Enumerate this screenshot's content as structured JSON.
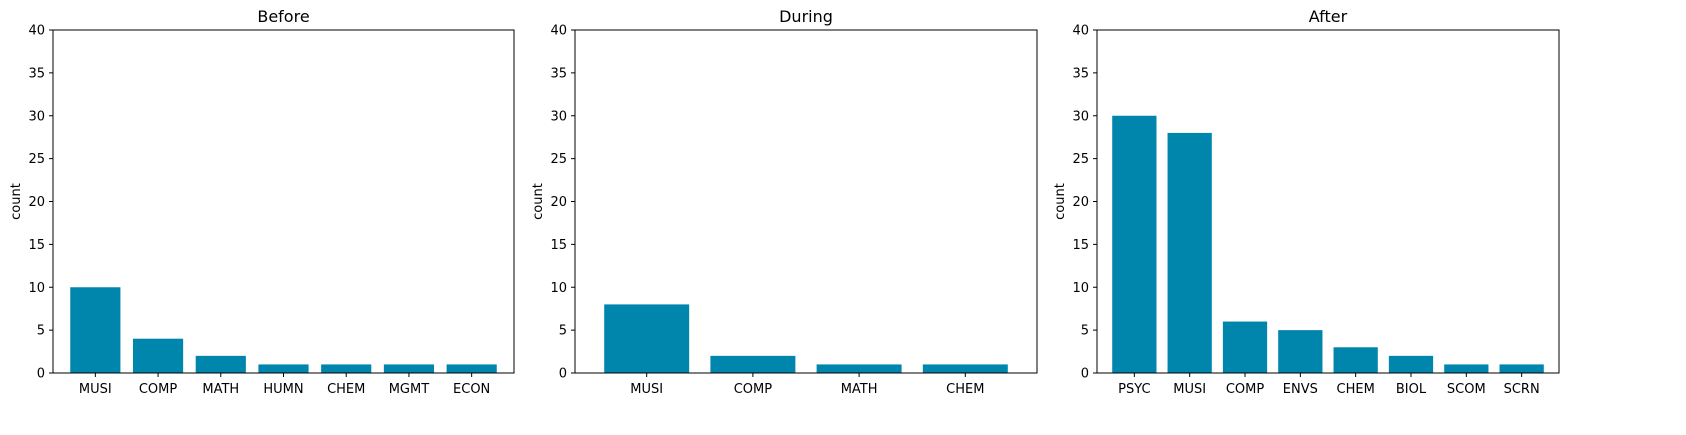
{
  "chart_data": [
    {
      "type": "bar",
      "title": "Before",
      "ylabel": "count",
      "ylim": [
        0,
        40
      ],
      "yticks": [
        0,
        5,
        10,
        15,
        20,
        25,
        30,
        35,
        40
      ],
      "categories": [
        "MUSI",
        "COMP",
        "MATH",
        "HUMN",
        "CHEM",
        "MGMT",
        "ECON"
      ],
      "values": [
        10,
        4,
        2,
        1,
        1,
        1,
        1
      ],
      "color": "#0086AD"
    },
    {
      "type": "bar",
      "title": "During",
      "ylabel": "count",
      "ylim": [
        0,
        40
      ],
      "yticks": [
        0,
        5,
        10,
        15,
        20,
        25,
        30,
        35,
        40
      ],
      "categories": [
        "MUSI",
        "COMP",
        "MATH",
        "CHEM"
      ],
      "values": [
        8,
        2,
        1,
        1
      ],
      "color": "#0086AD"
    },
    {
      "type": "bar",
      "title": "After",
      "ylabel": "count",
      "ylim": [
        0,
        40
      ],
      "yticks": [
        0,
        5,
        10,
        15,
        20,
        25,
        30,
        35,
        40
      ],
      "categories": [
        "PSYC",
        "MUSI",
        "COMP",
        "ENVS",
        "CHEM",
        "BIOL",
        "SCOM",
        "SCRN"
      ],
      "values": [
        30,
        28,
        6,
        5,
        3,
        2,
        1,
        1
      ],
      "color": "#0086AD"
    }
  ]
}
